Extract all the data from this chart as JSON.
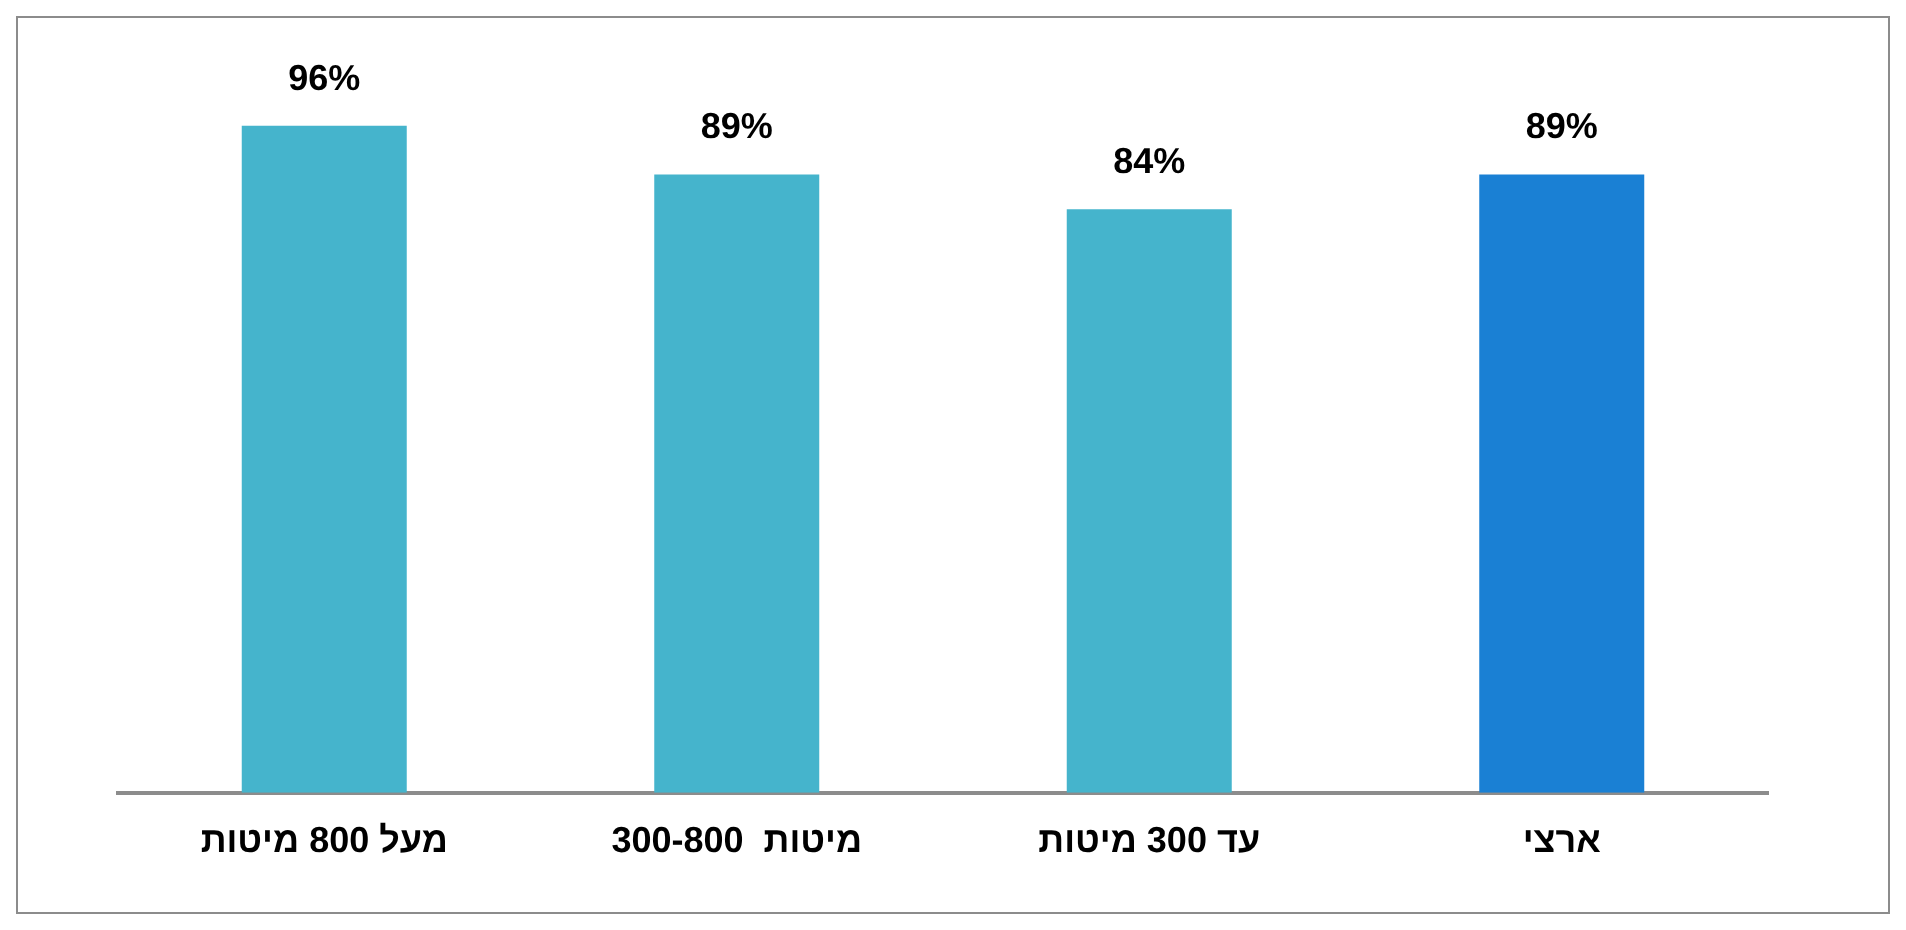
{
  "chart_data": {
    "type": "bar",
    "categories": [
      "מעל 800 מיטות",
      "מיטות  300-800",
      "עד 300 מיטות",
      "ארצי"
    ],
    "values": [
      96,
      89,
      84,
      89
    ],
    "value_labels": [
      "96%",
      "89%",
      "84%",
      "89%"
    ],
    "colors": [
      "#45b4cc",
      "#45b4cc",
      "#45b4cc",
      "#1a80d4"
    ],
    "tick_labels": "x",
    "grid": false,
    "legend": false
  }
}
